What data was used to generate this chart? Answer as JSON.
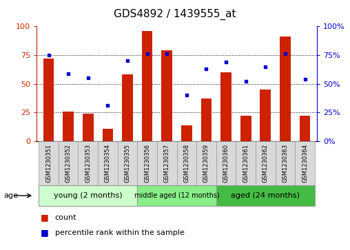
{
  "title": "GDS4892 / 1439555_at",
  "samples": [
    "GSM1230351",
    "GSM1230352",
    "GSM1230353",
    "GSM1230354",
    "GSM1230355",
    "GSM1230356",
    "GSM1230357",
    "GSM1230358",
    "GSM1230359",
    "GSM1230360",
    "GSM1230361",
    "GSM1230362",
    "GSM1230363",
    "GSM1230364"
  ],
  "bar_values": [
    72,
    26,
    24,
    11,
    58,
    96,
    79,
    14,
    37,
    60,
    22,
    45,
    91,
    22
  ],
  "scatter_values": [
    75,
    59,
    55,
    31,
    70,
    76,
    76,
    40,
    63,
    69,
    52,
    65,
    76,
    54
  ],
  "bar_color": "#cc2200",
  "scatter_color": "#0000cc",
  "ylim": [
    0,
    100
  ],
  "yticks": [
    0,
    25,
    50,
    75,
    100
  ],
  "grid_lines": [
    25,
    50,
    75
  ],
  "groups": [
    {
      "label": "young (2 months)",
      "start": 0,
      "end": 5
    },
    {
      "label": "middle aged (12 months)",
      "start": 5,
      "end": 9
    },
    {
      "label": "aged (24 months)",
      "start": 9,
      "end": 14
    }
  ],
  "group_colors": [
    "#ccffcc",
    "#88ee88",
    "#44bb44"
  ],
  "sample_box_color": "#d9d9d9",
  "legend_count_label": "count",
  "legend_pct_label": "percentile rank within the sample",
  "age_label": "age",
  "title_fontsize": 11,
  "tick_fontsize": 8,
  "sample_fontsize": 6.0,
  "group_fontsize_small": 7,
  "group_fontsize_large": 8
}
